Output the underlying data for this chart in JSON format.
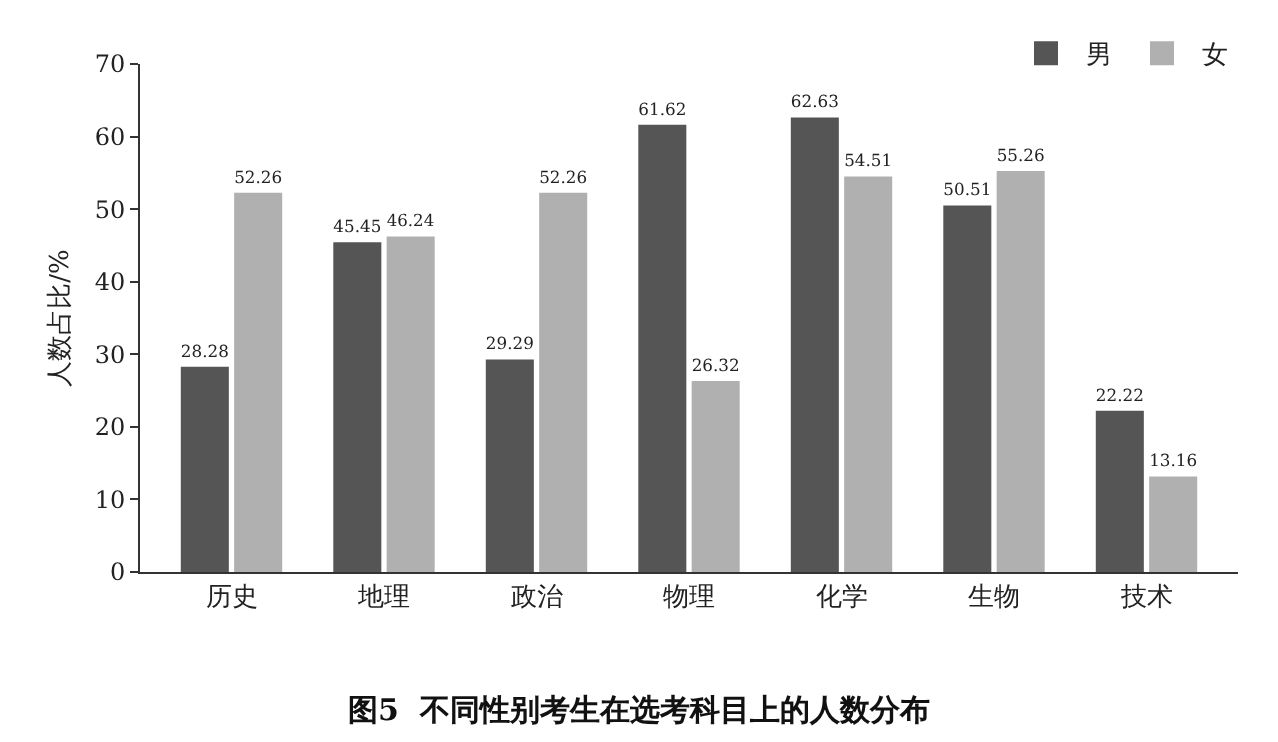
{
  "chart_data": {
    "type": "bar",
    "title": "图5  不同性别考生在选考科目上的人数分布",
    "ylabel": "人数占比/%",
    "categories": [
      "历史",
      "地理",
      "政治",
      "物理",
      "化学",
      "生物",
      "技术"
    ],
    "series": [
      {
        "name": "男",
        "color": "#555555",
        "values": [
          28.28,
          45.45,
          29.29,
          61.62,
          62.63,
          50.51,
          22.22
        ]
      },
      {
        "name": "女",
        "color": "#b0b0b0",
        "values": [
          52.26,
          46.24,
          52.26,
          26.32,
          54.51,
          55.26,
          13.16
        ]
      }
    ],
    "ylim": [
      0,
      70
    ],
    "yticks": [
      0,
      10,
      20,
      30,
      40,
      50,
      60,
      70
    ],
    "grid": false,
    "legend": "top right",
    "data_labels": true
  }
}
